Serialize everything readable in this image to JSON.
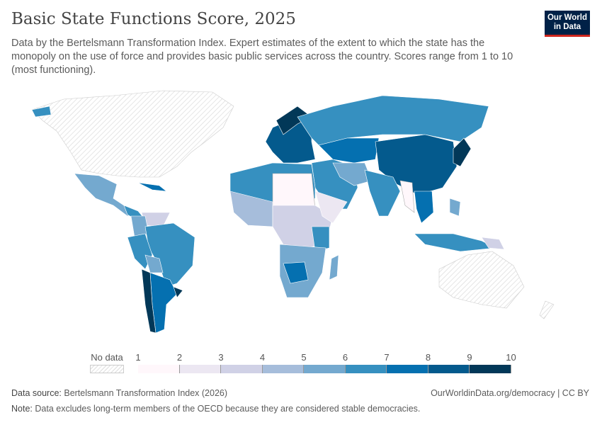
{
  "title": "Basic State Functions Score, 2025",
  "subtitle": "Data by the Bertelsmann Transformation Index. Expert estimates of the extent to which the state has the monopoly on the use of force and provides basic public services across the country. Scores range from 1 to 10 (most functioning).",
  "logo": {
    "line1": "Our World",
    "line2": "in Data",
    "bg": "#002147",
    "accent": "#ce261e"
  },
  "legend": {
    "no_data_label": "No data",
    "ticks": [
      "1",
      "2",
      "3",
      "4",
      "5",
      "6",
      "7",
      "8",
      "9",
      "10"
    ],
    "colors": [
      "#fff7fb",
      "#ece7f2",
      "#d0d1e6",
      "#a6bddb",
      "#74a9cf",
      "#3690c0",
      "#0570b0",
      "#045a8d",
      "#023858"
    ]
  },
  "footer": {
    "source_label": "Data source:",
    "source": "Bertelsmann Transformation Index (2026)",
    "url": "OurWorldinData.org/democracy | CC BY",
    "note_label": "Note:",
    "note": "Data excludes long-term members of the OECD because they are considered stable democracies."
  }
}
